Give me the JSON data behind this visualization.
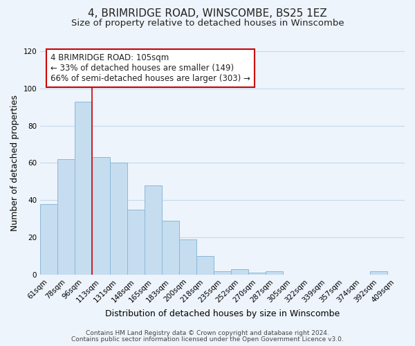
{
  "title": "4, BRIMRIDGE ROAD, WINSCOMBE, BS25 1EZ",
  "subtitle": "Size of property relative to detached houses in Winscombe",
  "xlabel": "Distribution of detached houses by size in Winscombe",
  "ylabel": "Number of detached properties",
  "categories": [
    "61sqm",
    "78sqm",
    "96sqm",
    "113sqm",
    "131sqm",
    "148sqm",
    "165sqm",
    "183sqm",
    "200sqm",
    "218sqm",
    "235sqm",
    "252sqm",
    "270sqm",
    "287sqm",
    "305sqm",
    "322sqm",
    "339sqm",
    "357sqm",
    "374sqm",
    "392sqm",
    "409sqm"
  ],
  "values": [
    38,
    62,
    93,
    63,
    60,
    35,
    48,
    29,
    19,
    10,
    2,
    3,
    1,
    2,
    0,
    0,
    0,
    0,
    0,
    2,
    0
  ],
  "bar_color": "#c5ddef",
  "bar_edge_color": "#8ab8d8",
  "vline_x_index": 2.5,
  "vline_color": "#cc0000",
  "ylim": [
    0,
    120
  ],
  "yticks": [
    0,
    20,
    40,
    60,
    80,
    100,
    120
  ],
  "annotation_text": "4 BRIMRIDGE ROAD: 105sqm\n← 33% of detached houses are smaller (149)\n66% of semi-detached houses are larger (303) →",
  "annotation_box_color": "#ffffff",
  "annotation_box_edge": "#cc0000",
  "footer_line1": "Contains HM Land Registry data © Crown copyright and database right 2024.",
  "footer_line2": "Contains public sector information licensed under the Open Government Licence v3.0.",
  "title_fontsize": 11,
  "subtitle_fontsize": 9.5,
  "axis_label_fontsize": 9,
  "tick_fontsize": 7.5,
  "annotation_fontsize": 8.5,
  "footer_fontsize": 6.5,
  "background_color": "#eef4fb",
  "grid_color": "#c5d8ea",
  "plot_bg_color": "#eef4fb"
}
